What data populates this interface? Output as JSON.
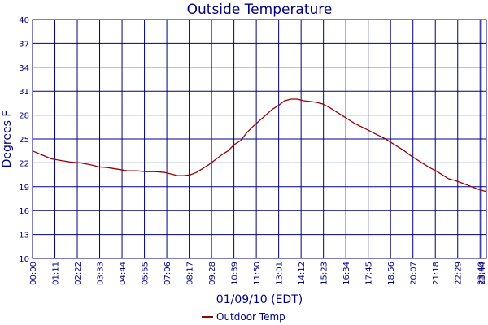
{
  "chart_data": {
    "type": "line",
    "title": "Outside Temperature",
    "xlabel": "01/09/10 (EDT)",
    "ylabel": "Degrees F",
    "ylim": [
      10,
      40
    ],
    "xlim": [
      0,
      1440
    ],
    "grid": true,
    "legend_position": "bottom-center",
    "y_ticks": [
      "10",
      "13",
      "16",
      "19",
      "22",
      "25",
      "28",
      "31",
      "34",
      "37",
      "40"
    ],
    "x_ticks": [
      "00:00",
      "01:11",
      "02:22",
      "03:33",
      "04:44",
      "05:55",
      "07:06",
      "08:17",
      "09:28",
      "10:39",
      "11:50",
      "13:01",
      "14:12",
      "15:23",
      "16:34",
      "17:45",
      "18:56",
      "20:07",
      "21:18",
      "22:29",
      "23:40",
      "23:44"
    ],
    "colors": {
      "grid": "#000080",
      "text": "#000080",
      "series": "#990000"
    },
    "series": [
      {
        "name": "Outdoor Temp",
        "x": [
          0,
          30,
          60,
          90,
          120,
          150,
          180,
          210,
          240,
          270,
          300,
          330,
          360,
          390,
          420,
          440,
          460,
          480,
          500,
          520,
          540,
          560,
          580,
          600,
          620,
          640,
          660,
          680,
          700,
          720,
          740,
          760,
          780,
          800,
          820,
          840,
          860,
          880,
          900,
          920,
          940,
          960,
          980,
          1000,
          1020,
          1040,
          1060,
          1080,
          1100,
          1120,
          1140,
          1160,
          1180,
          1200,
          1220,
          1240,
          1260,
          1280,
          1300,
          1320,
          1340,
          1360,
          1380,
          1400,
          1420,
          1440
        ],
        "y": [
          23.5,
          23.0,
          22.5,
          22.3,
          22.1,
          22.0,
          21.8,
          21.5,
          21.4,
          21.2,
          21.0,
          21.0,
          20.9,
          20.9,
          20.8,
          20.6,
          20.4,
          20.4,
          20.5,
          20.8,
          21.3,
          21.8,
          22.4,
          23.0,
          23.5,
          24.3,
          24.8,
          25.8,
          26.6,
          27.3,
          28.0,
          28.7,
          29.2,
          29.8,
          30.0,
          30.0,
          29.8,
          29.7,
          29.6,
          29.4,
          29.0,
          28.5,
          28.0,
          27.5,
          27.0,
          26.6,
          26.2,
          25.8,
          25.4,
          25.0,
          24.5,
          24.0,
          23.5,
          22.9,
          22.4,
          21.9,
          21.4,
          21.0,
          20.5,
          20.0,
          19.8,
          19.5,
          19.2,
          18.9,
          18.6,
          18.4
        ]
      }
    ]
  }
}
